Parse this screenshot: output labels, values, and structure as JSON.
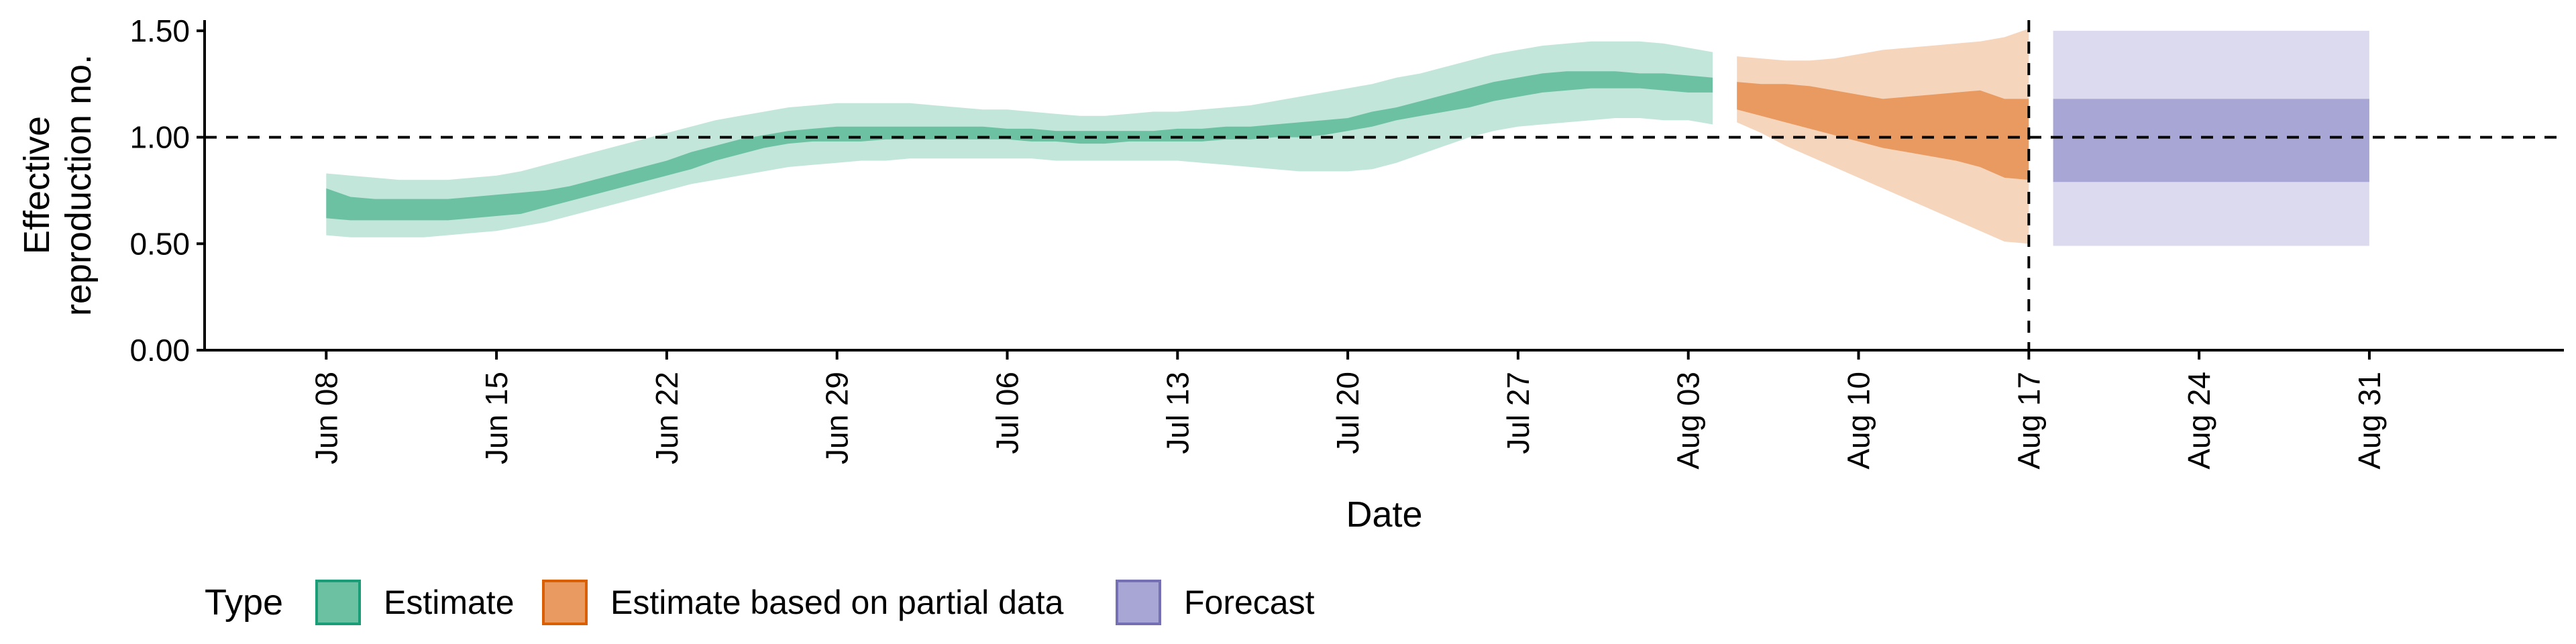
{
  "chart_data": {
    "type": "area",
    "title": "",
    "xlabel": "Date",
    "ylabel_lines": [
      "Effective",
      "reproduction no."
    ],
    "ylim": [
      0,
      1.55
    ],
    "yticks": [
      0,
      0.5,
      1,
      1.5
    ],
    "ytick_labels": [
      "0.00",
      "0.50",
      "1.00",
      "1.50"
    ],
    "x_start": "2020-06-03",
    "x_end": "2020-09-08",
    "xticks": [
      "2020-06-08",
      "2020-06-15",
      "2020-06-22",
      "2020-06-29",
      "2020-07-06",
      "2020-07-13",
      "2020-07-20",
      "2020-07-27",
      "2020-08-03",
      "2020-08-10",
      "2020-08-17",
      "2020-08-24",
      "2020-08-31"
    ],
    "xtick_labels": [
      "Jun 08",
      "Jun 15",
      "Jun 22",
      "Jun 29",
      "Jul 06",
      "Jul 13",
      "Jul 20",
      "Jul 27",
      "Aug 03",
      "Aug 10",
      "Aug 17",
      "Aug 24",
      "Aug 31"
    ],
    "reference_line_y": 1.0,
    "reference_line_x": "2020-08-17",
    "legend": {
      "title": "Type",
      "position": "bottom-left",
      "entries": [
        "Estimate",
        "Estimate based on partial data",
        "Forecast"
      ]
    },
    "colors": {
      "Estimate": {
        "outer": "#c3e6da",
        "inner": "#6cc1a3",
        "border": "#1b9e77"
      },
      "Estimate based on partial data": {
        "outer": "#f6d5bd",
        "inner": "#e89a60",
        "border": "#d95f02"
      },
      "Forecast": {
        "outer": "#dcdaee",
        "inner": "#a8a6d4",
        "border": "#7570b3"
      }
    },
    "series": [
      {
        "name": "Estimate",
        "dates": [
          "2020-06-08",
          "2020-06-09",
          "2020-06-10",
          "2020-06-11",
          "2020-06-12",
          "2020-06-13",
          "2020-06-14",
          "2020-06-15",
          "2020-06-16",
          "2020-06-17",
          "2020-06-18",
          "2020-06-19",
          "2020-06-20",
          "2020-06-21",
          "2020-06-22",
          "2020-06-23",
          "2020-06-24",
          "2020-06-25",
          "2020-06-26",
          "2020-06-27",
          "2020-06-28",
          "2020-06-29",
          "2020-06-30",
          "2020-07-01",
          "2020-07-02",
          "2020-07-03",
          "2020-07-04",
          "2020-07-05",
          "2020-07-06",
          "2020-07-07",
          "2020-07-08",
          "2020-07-09",
          "2020-07-10",
          "2020-07-11",
          "2020-07-12",
          "2020-07-13",
          "2020-07-14",
          "2020-07-15",
          "2020-07-16",
          "2020-07-17",
          "2020-07-18",
          "2020-07-19",
          "2020-07-20",
          "2020-07-21",
          "2020-07-22",
          "2020-07-23",
          "2020-07-24",
          "2020-07-25",
          "2020-07-26",
          "2020-07-27",
          "2020-07-28",
          "2020-07-29",
          "2020-07-30",
          "2020-07-31",
          "2020-08-01",
          "2020-08-02",
          "2020-08-03",
          "2020-08-04"
        ],
        "lower90": [
          0.54,
          0.53,
          0.53,
          0.53,
          0.53,
          0.54,
          0.55,
          0.56,
          0.58,
          0.6,
          0.63,
          0.66,
          0.69,
          0.72,
          0.75,
          0.78,
          0.8,
          0.82,
          0.84,
          0.86,
          0.87,
          0.88,
          0.89,
          0.89,
          0.9,
          0.9,
          0.9,
          0.9,
          0.9,
          0.9,
          0.89,
          0.89,
          0.89,
          0.89,
          0.89,
          0.89,
          0.88,
          0.87,
          0.86,
          0.85,
          0.84,
          0.84,
          0.84,
          0.85,
          0.88,
          0.92,
          0.96,
          1.0,
          1.03,
          1.05,
          1.06,
          1.07,
          1.08,
          1.09,
          1.09,
          1.08,
          1.08,
          1.06
        ],
        "lower50": [
          0.62,
          0.61,
          0.61,
          0.61,
          0.61,
          0.61,
          0.62,
          0.63,
          0.64,
          0.67,
          0.7,
          0.73,
          0.76,
          0.79,
          0.82,
          0.85,
          0.89,
          0.92,
          0.95,
          0.97,
          0.98,
          0.98,
          0.98,
          0.99,
          0.99,
          0.99,
          0.99,
          0.99,
          0.99,
          0.98,
          0.98,
          0.97,
          0.97,
          0.98,
          0.98,
          0.98,
          0.98,
          0.99,
          0.99,
          1.0,
          1.0,
          1.01,
          1.03,
          1.05,
          1.08,
          1.1,
          1.12,
          1.14,
          1.17,
          1.19,
          1.21,
          1.22,
          1.23,
          1.23,
          1.23,
          1.22,
          1.21,
          1.21
        ],
        "upper50": [
          0.76,
          0.72,
          0.71,
          0.71,
          0.71,
          0.71,
          0.72,
          0.73,
          0.74,
          0.75,
          0.77,
          0.8,
          0.83,
          0.86,
          0.89,
          0.93,
          0.96,
          0.99,
          1.01,
          1.03,
          1.04,
          1.05,
          1.05,
          1.05,
          1.05,
          1.05,
          1.05,
          1.05,
          1.04,
          1.04,
          1.03,
          1.03,
          1.03,
          1.03,
          1.03,
          1.04,
          1.04,
          1.05,
          1.05,
          1.06,
          1.07,
          1.08,
          1.09,
          1.12,
          1.14,
          1.17,
          1.2,
          1.23,
          1.26,
          1.28,
          1.3,
          1.31,
          1.31,
          1.31,
          1.3,
          1.3,
          1.29,
          1.28
        ],
        "upper90": [
          0.83,
          0.82,
          0.81,
          0.8,
          0.8,
          0.8,
          0.81,
          0.82,
          0.84,
          0.87,
          0.9,
          0.93,
          0.96,
          0.99,
          1.02,
          1.05,
          1.08,
          1.1,
          1.12,
          1.14,
          1.15,
          1.16,
          1.16,
          1.16,
          1.16,
          1.15,
          1.14,
          1.13,
          1.13,
          1.12,
          1.11,
          1.1,
          1.1,
          1.11,
          1.12,
          1.12,
          1.13,
          1.14,
          1.15,
          1.17,
          1.19,
          1.21,
          1.23,
          1.25,
          1.28,
          1.3,
          1.33,
          1.36,
          1.39,
          1.41,
          1.43,
          1.44,
          1.45,
          1.45,
          1.45,
          1.44,
          1.42,
          1.4
        ]
      },
      {
        "name": "Estimate based on partial data",
        "dates": [
          "2020-08-05",
          "2020-08-06",
          "2020-08-07",
          "2020-08-08",
          "2020-08-09",
          "2020-08-10",
          "2020-08-11",
          "2020-08-12",
          "2020-08-13",
          "2020-08-14",
          "2020-08-15",
          "2020-08-16",
          "2020-08-17"
        ],
        "lower90": [
          1.07,
          1.02,
          0.96,
          0.91,
          0.86,
          0.81,
          0.76,
          0.71,
          0.66,
          0.61,
          0.56,
          0.51,
          0.5
        ],
        "lower50": [
          1.13,
          1.1,
          1.07,
          1.04,
          1.01,
          0.98,
          0.95,
          0.93,
          0.91,
          0.89,
          0.86,
          0.81,
          0.8
        ],
        "upper50": [
          1.26,
          1.25,
          1.25,
          1.24,
          1.22,
          1.2,
          1.18,
          1.19,
          1.2,
          1.21,
          1.22,
          1.18,
          1.18
        ],
        "upper90": [
          1.38,
          1.37,
          1.36,
          1.36,
          1.37,
          1.39,
          1.41,
          1.42,
          1.43,
          1.44,
          1.45,
          1.47,
          1.51
        ]
      },
      {
        "name": "Forecast",
        "dates": [
          "2020-08-18",
          "2020-08-31"
        ],
        "lower90": [
          0.49,
          0.49
        ],
        "lower50": [
          0.79,
          0.79
        ],
        "upper50": [
          1.18,
          1.18
        ],
        "upper90": [
          1.5,
          1.5
        ]
      }
    ]
  }
}
